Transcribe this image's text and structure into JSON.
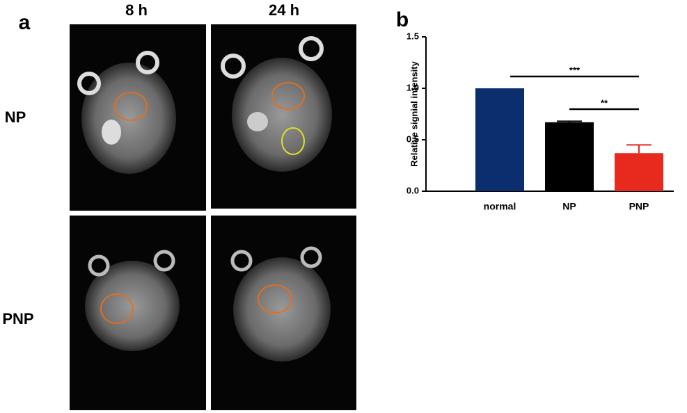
{
  "panel_a": {
    "label": "a",
    "columns": [
      "8 h",
      "24 h"
    ],
    "rows": [
      "NP",
      "PNP"
    ]
  },
  "chart_data": {
    "type": "bar",
    "panel_label": "b",
    "y_label": "Relative signial intensity",
    "categories": [
      "normal",
      "NP",
      "PNP"
    ],
    "values": [
      1.0,
      0.67,
      0.37
    ],
    "errors": [
      0,
      0.01,
      0.08
    ],
    "colors": [
      "#0b2f6e",
      "#000000",
      "#e8291d"
    ],
    "ylim": [
      0,
      1.5
    ],
    "yticks": [
      {
        "value": 0,
        "label": "0.0"
      },
      {
        "value": 0.5,
        "label": "0.5"
      },
      {
        "value": 1,
        "label": "1.0"
      },
      {
        "value": 1.5,
        "label": "1.5"
      }
    ],
    "annotations": [
      {
        "text": "***",
        "from": 0,
        "to": 2
      },
      {
        "text": "**",
        "from": 1,
        "to": 2
      }
    ]
  }
}
